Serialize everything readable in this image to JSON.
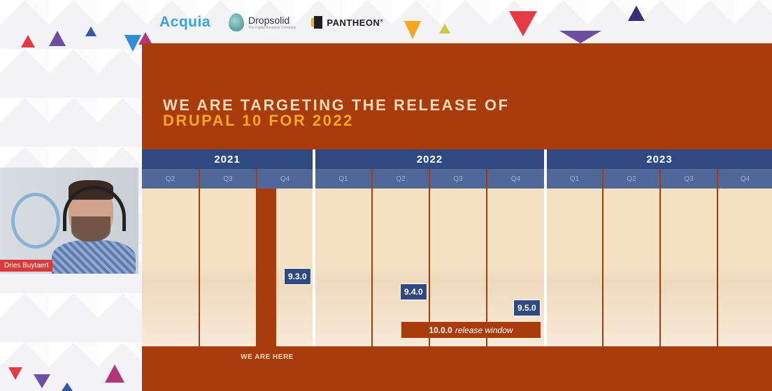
{
  "sponsors": {
    "acquia": "Acquia",
    "dropsolid": "Dropsolid",
    "dropsolid_tagline": "The Digital Business Company",
    "pantheon": "PANTHEON",
    "pantheon_mark": "®"
  },
  "slide": {
    "title_line1": "WE ARE TARGETING THE RELEASE OF",
    "title_line2": "DRUPAL 10 FOR 2022",
    "years": [
      "2021",
      "2022",
      "2023"
    ],
    "quarters": [
      "Q2",
      "Q3",
      "Q4",
      "Q1",
      "Q2",
      "Q3",
      "Q4",
      "Q1",
      "Q2",
      "Q3",
      "Q4"
    ],
    "releases": [
      "9.3.0",
      "9.4.0",
      "9.5.0"
    ],
    "window_version": "10.0.0",
    "window_label": "release window",
    "marker_label": "WE ARE HERE"
  },
  "presenter": {
    "name": "Dries Buytaert"
  },
  "colors": {
    "slide_bg": "#a93c0d",
    "title_light": "#f3d9b6",
    "title_accent": "#f6a61f",
    "year_bar": "#2f4a80",
    "quarter_bar": "#4f6799",
    "timeline_fill": "#f5e0c2",
    "name_tag": "#d93b3b"
  }
}
